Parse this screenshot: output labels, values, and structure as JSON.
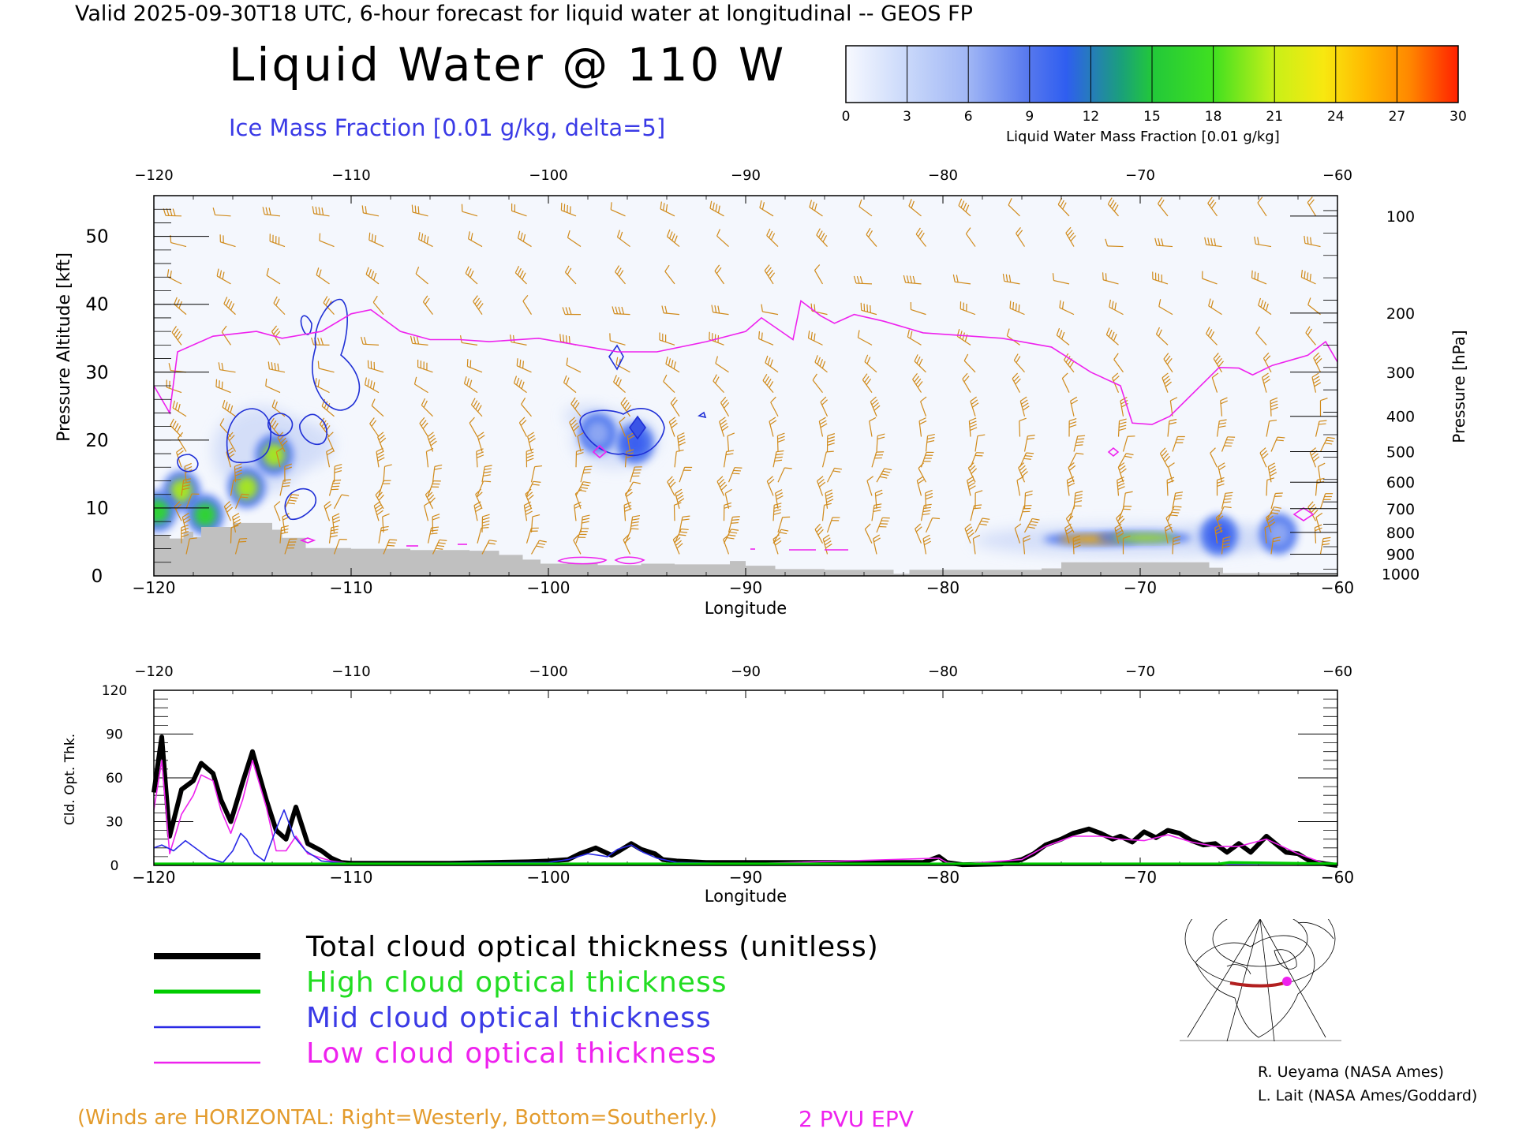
{
  "header": {
    "top_title": "Valid 2025-09-30T18 UTC, 6-hour forecast for liquid water at longitudinal -- GEOS FP",
    "big_title": "Liquid Water @ 110 W",
    "ice_label": "Ice Mass Fraction [0.01 g/kg, delta=5]"
  },
  "colorbar": {
    "ticks": [
      "0",
      "3",
      "6",
      "9",
      "12",
      "15",
      "18",
      "21",
      "24",
      "27",
      "30"
    ],
    "title": "Liquid Water Mass Fraction [0.01 g/kg]",
    "colors": [
      "#eef2fd",
      "#b9cdf8",
      "#8fa8f3",
      "#3b5ef0",
      "#1e9c7a",
      "#2ed62e",
      "#a8e81c",
      "#f0f01c",
      "#ffb300",
      "#ff7a00",
      "#ff1e00"
    ]
  },
  "chart_data": [
    {
      "type": "heatmap",
      "title": "Liquid Water @ 110 W",
      "xlabel": "Longitude",
      "ylabel": "Pressure Altitude [kft]",
      "ylabel_right": "Pressure [hPa]",
      "xlim": [
        -120,
        -60
      ],
      "ylim": [
        0,
        56
      ],
      "xticks": [
        "−120",
        "−110",
        "−100",
        "−90",
        "−80",
        "−70",
        "−60"
      ],
      "yticks": [
        "0",
        "10",
        "20",
        "30",
        "40",
        "50"
      ],
      "pressure_ticks": [
        {
          "label": "100",
          "kft": 53
        },
        {
          "label": "200",
          "kft": 38.7
        },
        {
          "label": "300",
          "kft": 30
        },
        {
          "label": "400",
          "kft": 23.5
        },
        {
          "label": "500",
          "kft": 18.3
        },
        {
          "label": "600",
          "kft": 13.8
        },
        {
          "label": "700",
          "kft": 9.9
        },
        {
          "label": "800",
          "kft": 6.4
        },
        {
          "label": "900",
          "kft": 3.2
        },
        {
          "label": "1000",
          "kft": 0.3
        }
      ],
      "liquid_water_blobs": [
        {
          "lon": -118.6,
          "kft": 12.5,
          "value": 18
        },
        {
          "lon": -117.4,
          "kft": 9,
          "value": 15
        },
        {
          "lon": -119.8,
          "kft": 9.5,
          "value": 15
        },
        {
          "lon": -115.3,
          "kft": 13,
          "value": 18
        },
        {
          "lon": -113.9,
          "kft": 17.8,
          "value": 18
        },
        {
          "lon": -95.6,
          "kft": 19.5,
          "value": 9
        },
        {
          "lon": -97.5,
          "kft": 21,
          "value": 6
        },
        {
          "lon": -72.5,
          "kft": 5.4,
          "value": 24
        },
        {
          "lon": -69.8,
          "kft": 5.6,
          "value": 18
        },
        {
          "lon": -66,
          "kft": 6,
          "value": 8
        },
        {
          "lon": -63,
          "kft": 6.2,
          "value": 6
        }
      ],
      "epv_2pvu_line": [
        [
          -120,
          28
        ],
        [
          -119.2,
          24
        ],
        [
          -118.8,
          33
        ],
        [
          -117,
          35.3
        ],
        [
          -114.8,
          36
        ],
        [
          -113.5,
          35
        ],
        [
          -111.5,
          36
        ],
        [
          -110,
          38.6
        ],
        [
          -109,
          39.2
        ],
        [
          -107.5,
          36
        ],
        [
          -106,
          34.8
        ],
        [
          -104.5,
          34.8
        ],
        [
          -103,
          34.5
        ],
        [
          -100.5,
          35
        ],
        [
          -98.5,
          34
        ],
        [
          -96.5,
          33
        ],
        [
          -94.5,
          33
        ],
        [
          -92,
          34.5
        ],
        [
          -90,
          36
        ],
        [
          -89.6,
          37
        ],
        [
          -89.2,
          38
        ],
        [
          -88.2,
          36
        ],
        [
          -87.6,
          34.8
        ],
        [
          -87.2,
          40.5
        ],
        [
          -86.2,
          38.3
        ],
        [
          -85.5,
          37.2
        ],
        [
          -84.5,
          38.5
        ],
        [
          -83,
          37.5
        ],
        [
          -81,
          35.8
        ],
        [
          -77,
          35
        ],
        [
          -74.5,
          33.7
        ],
        [
          -72.5,
          30
        ],
        [
          -71,
          28
        ],
        [
          -70.4,
          22.5
        ],
        [
          -69.4,
          22.3
        ],
        [
          -68.5,
          23.5
        ],
        [
          -66,
          30.7
        ],
        [
          -65,
          30.6
        ],
        [
          -64.3,
          29.6
        ],
        [
          -63.3,
          31
        ],
        [
          -61.5,
          32.5
        ],
        [
          -60.6,
          34.5
        ],
        [
          -60,
          31.5
        ]
      ]
    },
    {
      "type": "line",
      "xlabel": "Longitude",
      "ylabel": "Cld. Opt. Thk.",
      "xlim": [
        -120,
        -60
      ],
      "ylim": [
        0,
        120
      ],
      "xticks": [
        "−120",
        "−110",
        "−100",
        "−90",
        "−80",
        "−70",
        "−60"
      ],
      "yticks": [
        "0",
        "30",
        "60",
        "90",
        "120"
      ],
      "series": [
        {
          "name": "Total cloud optical thickness (unitless)",
          "color": "#000000",
          "x": [
            -120,
            -119.6,
            -119.2,
            -118.6,
            -118,
            -117.6,
            -117,
            -116.6,
            -116.1,
            -115.5,
            -115,
            -114.3,
            -113.8,
            -113.3,
            -112.8,
            -112.2,
            -111.5,
            -111,
            -110.5,
            -110,
            -105,
            -101,
            -100,
            -99,
            -98.4,
            -97.6,
            -96.8,
            -96.4,
            -95.8,
            -95.3,
            -94.6,
            -94.2,
            -93.5,
            -92,
            -90,
            -85,
            -81,
            -80.2,
            -79.8,
            -79,
            -77,
            -76,
            -75.4,
            -74.8,
            -74,
            -73.4,
            -72.6,
            -72,
            -71.4,
            -71,
            -70.4,
            -69.8,
            -69.2,
            -68.6,
            -68,
            -67.4,
            -66.8,
            -66.2,
            -65.6,
            -65,
            -64.4,
            -63.6,
            -62.6,
            -62,
            -61.4,
            -60.6,
            -60
          ],
          "values": [
            50,
            88,
            20,
            52,
            58,
            70,
            63,
            45,
            30,
            57,
            78,
            45,
            24,
            18,
            40,
            15,
            10,
            5,
            2,
            1.5,
            1.5,
            2.5,
            3,
            4,
            8,
            12,
            7,
            10,
            15,
            11,
            8,
            4,
            3,
            2,
            2,
            2,
            2,
            6,
            2,
            0.5,
            1,
            4,
            8,
            14,
            18,
            22,
            25,
            22,
            18,
            20,
            16,
            23,
            19,
            24,
            22,
            17,
            14,
            15,
            9,
            15,
            9,
            20,
            9,
            8,
            3,
            1,
            0
          ]
        },
        {
          "name": "High cloud optical thickness",
          "color": "#00cc00",
          "x": [
            -120,
            -110,
            -100,
            -96,
            -90,
            -70,
            -66,
            -65.5,
            -60
          ],
          "values": [
            1,
            1,
            1,
            1,
            1,
            1,
            1,
            2,
            1
          ]
        },
        {
          "name": "Mid cloud optical thickness",
          "color": "#2a2ae6",
          "x": [
            -120,
            -119.6,
            -119,
            -118.4,
            -117.7,
            -117.2,
            -116.5,
            -116,
            -115.6,
            -115.3,
            -114.9,
            -114.4,
            -113.8,
            -113.4,
            -112.9,
            -112.3,
            -111.5,
            -110,
            -100,
            -99,
            -98,
            -97,
            -96.5,
            -95.8,
            -95.2,
            -94.5,
            -93.5,
            -90,
            -60
          ],
          "values": [
            12,
            14,
            10,
            17,
            10,
            5,
            2,
            10,
            22,
            18,
            8,
            3,
            25,
            38,
            20,
            10,
            3,
            1,
            2,
            4,
            8,
            6,
            11,
            14,
            9,
            5,
            2,
            1,
            1
          ]
        },
        {
          "name": "Low cloud optical thickness",
          "color": "#ee22ee",
          "x": [
            -120,
            -119.6,
            -119.2,
            -118.6,
            -118,
            -117.6,
            -117,
            -116.6,
            -116.1,
            -115.5,
            -115,
            -114.3,
            -113.8,
            -113.3,
            -112.8,
            -112.2,
            -111.5,
            -111,
            -110,
            -100,
            -90,
            -80.2,
            -79.8,
            -79,
            -76,
            -74.8,
            -73.4,
            -72,
            -71,
            -69.8,
            -68.6,
            -67.4,
            -66.2,
            -65,
            -63.6,
            -62,
            -60.6,
            -60
          ],
          "values": [
            38,
            72,
            8,
            35,
            48,
            62,
            58,
            38,
            22,
            45,
            72,
            40,
            10,
            10,
            20,
            8,
            5,
            3,
            1,
            1,
            1,
            5,
            2,
            1,
            4,
            13,
            20,
            20,
            18,
            17,
            21,
            16,
            13,
            13,
            18,
            8,
            1,
            0
          ]
        }
      ]
    }
  ],
  "legend": {
    "total": "Total cloud optical thickness (unitless)",
    "high": "High cloud optical thickness",
    "mid": "Mid cloud optical thickness",
    "low": "Low cloud optical thickness"
  },
  "credits": {
    "line1": "R. Ueyama (NASA Ames)",
    "line2": "L. Lait (NASA Ames/Goddard)"
  },
  "notes": {
    "winds": "(Winds are HORIZONTAL: Right=Westerly, Bottom=Southerly.)",
    "pvu": "2 PVU EPV"
  }
}
